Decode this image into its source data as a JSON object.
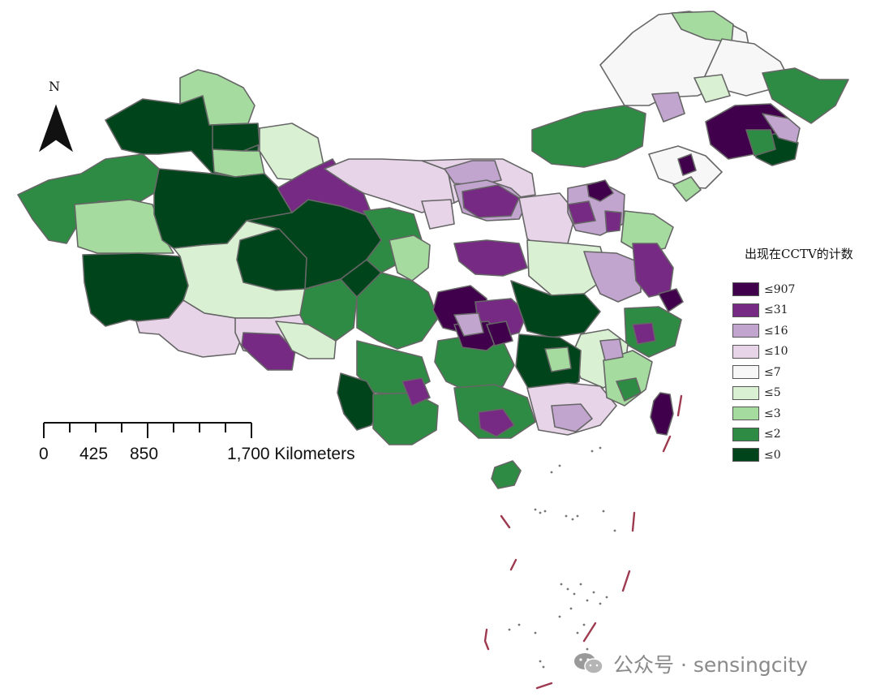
{
  "north_arrow": {
    "label": "N"
  },
  "scale_bar": {
    "labels": [
      "0",
      "425",
      "850",
      "1,700 Kilometers"
    ]
  },
  "legend": {
    "title": "出现在CCTV的计数",
    "items": [
      {
        "label": "≤907",
        "color": "#40004b"
      },
      {
        "label": "≤31",
        "color": "#762a83"
      },
      {
        "label": "≤16",
        "color": "#c2a5cf"
      },
      {
        "label": "≤10",
        "color": "#e7d4e8"
      },
      {
        "label": "≤7",
        "color": "#f7f7f7"
      },
      {
        "label": "≤5",
        "color": "#d9f0d3"
      },
      {
        "label": "≤3",
        "color": "#a6dba0"
      },
      {
        "label": "≤2",
        "color": "#2e8b43"
      },
      {
        "label": "≤0",
        "color": "#00441b"
      }
    ]
  },
  "watermark": {
    "text": "公众号 · sensingcity"
  },
  "colors": {
    "border": "#666666",
    "dash_line": "#9e3a50"
  }
}
